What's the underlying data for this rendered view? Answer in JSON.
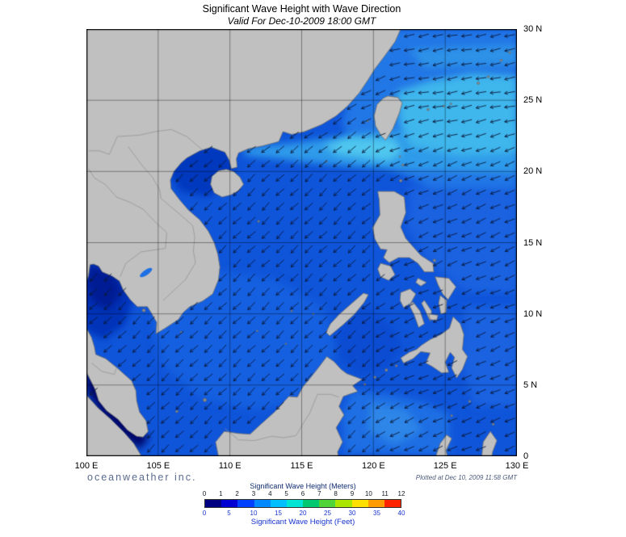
{
  "header": {
    "title": "Significant Wave Height with Wave Direction",
    "subtitle": "Valid For Dec-10-2009 18:00 GMT"
  },
  "axes": {
    "lon_labels": [
      "100 E",
      "105 E",
      "110 E",
      "115 E",
      "120 E",
      "125 E",
      "130 E"
    ],
    "lat_labels": [
      "30 N",
      "25 N",
      "20 N",
      "15 N",
      "10 N",
      "5 N",
      "0"
    ]
  },
  "legend": {
    "meters_label": "Significant Wave Height (Meters)",
    "meters_ticks": [
      "0",
      "1",
      "2",
      "3",
      "4",
      "5",
      "6",
      "7",
      "8",
      "9",
      "10",
      "11",
      "12"
    ],
    "feet_label": "Significant Wave Height (Feet)",
    "feet_ticks": [
      "0",
      "5",
      "10",
      "15",
      "20",
      "25",
      "30",
      "35",
      "40"
    ],
    "colors": [
      "#000080",
      "#0000D2",
      "#0040FF",
      "#0088FF",
      "#00C0FF",
      "#00E4D4",
      "#00C870",
      "#50D438",
      "#AAE600",
      "#FFE000",
      "#FF9C00",
      "#FF2400"
    ]
  },
  "footer": {
    "brand": "oceanweather inc.",
    "plotted_at": "Plotted at Dec 10, 2009 11:58 GMT"
  },
  "map_colors": {
    "ocean_base": "#0F55DA",
    "land": "#C0C0C0",
    "coastline": "#6E6E6E",
    "border": "#8F8F8F",
    "arrow": "#0B1838"
  }
}
